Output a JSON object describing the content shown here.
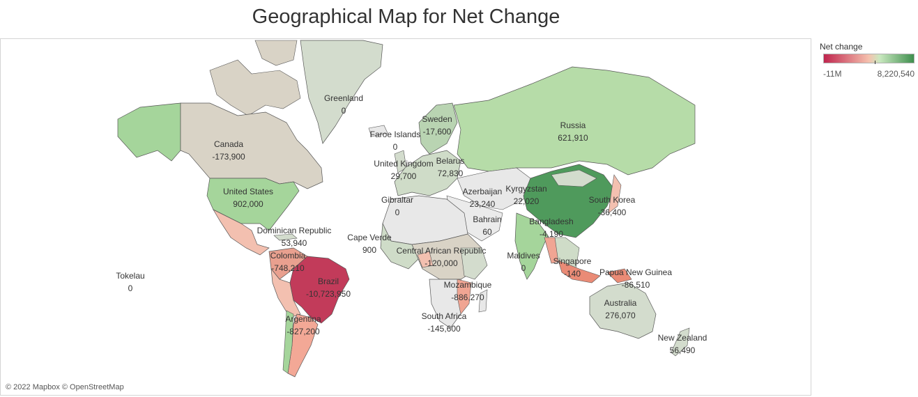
{
  "title": "Geographical Map for Net Change",
  "attribution": "© 2022 Mapbox © OpenStreetMap",
  "legend": {
    "title": "Net change",
    "min_label": "-11M",
    "max_label": "8,220,540",
    "min_color": "#c0254e",
    "mid_color": "#f5c1ae",
    "max_color": "#3f8f4e"
  },
  "regions": [
    {
      "name": "Greenland",
      "value": "0"
    },
    {
      "name": "Canada",
      "value": "-173,900"
    },
    {
      "name": "United States",
      "value": "902,000"
    },
    {
      "name": "Russia",
      "value": "621,910"
    },
    {
      "name": "Sweden",
      "value": "-17,600"
    },
    {
      "name": "Faroe Islands",
      "value": "0"
    },
    {
      "name": "United Kingdom",
      "value": "29,700"
    },
    {
      "name": "Belarus",
      "value": "72,830"
    },
    {
      "name": "Gibraltar",
      "value": "0"
    },
    {
      "name": "Azerbaijan",
      "value": "23,240"
    },
    {
      "name": "Kyrgyzstan",
      "value": "22,020"
    },
    {
      "name": "South Korea",
      "value": "-36,400"
    },
    {
      "name": "Bahrain",
      "value": "60"
    },
    {
      "name": "Bangladesh",
      "value": "-4,190"
    },
    {
      "name": "Dominican Republic",
      "value": "53,940"
    },
    {
      "name": "Cape Verde",
      "value": "900"
    },
    {
      "name": "Colombia",
      "value": "-748,210"
    },
    {
      "name": "Central African Republic",
      "value": "-120,000"
    },
    {
      "name": "Maldives",
      "value": "0"
    },
    {
      "name": "Singapore",
      "value": "-140"
    },
    {
      "name": "Papua New Guinea",
      "value": "-86,510"
    },
    {
      "name": "Tokelau",
      "value": "0"
    },
    {
      "name": "Brazil",
      "value": "-10,723,950"
    },
    {
      "name": "Mozambique",
      "value": "-886,270"
    },
    {
      "name": "Australia",
      "value": "276,070"
    },
    {
      "name": "Argentina",
      "value": "-827,200"
    },
    {
      "name": "South Africa",
      "value": "-145,600"
    },
    {
      "name": "New Zealand",
      "value": "56,490"
    }
  ]
}
